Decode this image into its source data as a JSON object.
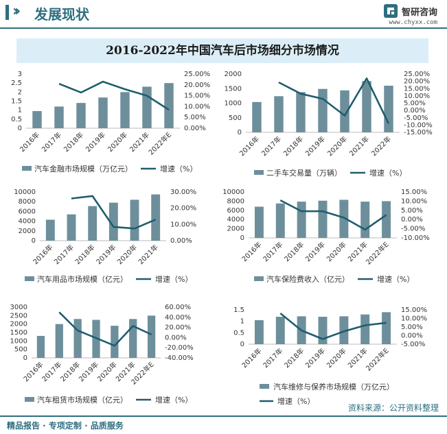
{
  "header": {
    "title": "发展现状",
    "brand_name": "智研咨询",
    "brand_url": "www.chyxx.com"
  },
  "main_title": "2016-2022年中国汽车后市场细分市场情况",
  "footer": {
    "left": "精品报告 · 专项定制 · 品质服务",
    "source": "资料来源：公开资料整理"
  },
  "colors": {
    "bar": "#6d8f9b",
    "line": "#1f5d6e",
    "brand": "#2e6e7f"
  },
  "chart_data": [
    {
      "type": "bar+line",
      "categories": [
        "2016年",
        "2017年",
        "2018年",
        "2019年",
        "2020年",
        "2021年",
        "2022年E"
      ],
      "bar_series": {
        "name": "汽车金融市场规模（万亿元）",
        "values": [
          0.95,
          1.2,
          1.4,
          1.7,
          2.0,
          2.3,
          2.5
        ]
      },
      "line_series": {
        "name": "增速（%）",
        "values": [
          null,
          20.5,
          16.5,
          21.5,
          18.0,
          15.0,
          8.5
        ]
      },
      "left_axis": {
        "ticks": [
          "0",
          "0.5",
          "1",
          "1.5",
          "2",
          "2.5",
          "3"
        ],
        "range": [
          0,
          3
        ]
      },
      "right_axis": {
        "ticks": [
          "0.00%",
          "5.00%",
          "10.00%",
          "15.00%",
          "20.00%",
          "25.00%"
        ],
        "range": [
          0,
          25
        ]
      }
    },
    {
      "type": "bar+line",
      "categories": [
        "2016年",
        "2017年",
        "2018年",
        "2019年",
        "2020年",
        "2021年",
        "2022年"
      ],
      "bar_series": {
        "name": "二手车交易量（万辆）",
        "values": [
          1040,
          1240,
          1380,
          1490,
          1440,
          1760,
          1600
        ]
      },
      "line_series": {
        "name": "增速（%）",
        "values": [
          null,
          19.3,
          11.5,
          8.0,
          -3.5,
          22.0,
          -9.0
        ]
      },
      "left_axis": {
        "ticks": [
          "0",
          "500",
          "1000",
          "1500",
          "2000"
        ],
        "range": [
          0,
          2000
        ]
      },
      "right_axis": {
        "ticks": [
          "-15.00%",
          "-10.00%",
          "-5.00%",
          "0.00%",
          "5.00%",
          "10.00%",
          "15.00%",
          "20.00%",
          "25.00%"
        ],
        "range": [
          -15,
          25
        ]
      }
    },
    {
      "type": "bar+line",
      "categories": [
        "2016年",
        "2017年",
        "2018年",
        "2019年",
        "2020年",
        "2021年"
      ],
      "bar_series": {
        "name": "汽车用品市场规模（亿元）",
        "values": [
          4300,
          5400,
          7100,
          7800,
          8400,
          9500
        ]
      },
      "line_series": {
        "name": "增速（%）",
        "values": [
          null,
          26.0,
          27.5,
          8.5,
          7.5,
          13.0
        ]
      },
      "left_axis": {
        "ticks": [
          "0",
          "2000",
          "4000",
          "6000",
          "8000",
          "10000"
        ],
        "range": [
          0,
          10000
        ]
      },
      "right_axis": {
        "ticks": [
          "0.00%",
          "10.00%",
          "20.00%",
          "30.00%"
        ],
        "range": [
          0,
          30
        ]
      }
    },
    {
      "type": "bar+line",
      "categories": [
        "2016年",
        "2017年",
        "2018年",
        "2019年",
        "2020年",
        "2021年",
        "2022年E"
      ],
      "bar_series": {
        "name": "汽车保险费收入（亿元）",
        "values": [
          6800,
          7500,
          7900,
          8100,
          8300,
          7900,
          8000
        ]
      },
      "line_series": {
        "name": "增速（%）",
        "values": [
          null,
          10.5,
          4.5,
          4.5,
          1.0,
          -5.5,
          2.5
        ]
      },
      "left_axis": {
        "ticks": [
          "0",
          "2000",
          "4000",
          "6000",
          "8000",
          "10000"
        ],
        "range": [
          0,
          10000
        ]
      },
      "right_axis": {
        "ticks": [
          "-10.00%",
          "-5.00%",
          "0.00%",
          "5.00%",
          "10.00%",
          "15.00%"
        ],
        "range": [
          -10,
          15
        ]
      }
    },
    {
      "type": "bar+line",
      "categories": [
        "2016年",
        "2017年",
        "2018年",
        "2019年",
        "2020年",
        "2021年",
        "2022年E"
      ],
      "bar_series": {
        "name": "汽车租赁市场规模（亿元）",
        "values": [
          1300,
          2000,
          2300,
          2250,
          1900,
          2300,
          2500
        ]
      },
      "line_series": {
        "name": "增速（%）",
        "values": [
          null,
          50.0,
          14.0,
          -1.0,
          -16.0,
          23.0,
          6.0
        ]
      },
      "left_axis": {
        "ticks": [
          "0",
          "500",
          "1000",
          "1500",
          "2000",
          "2500",
          "3000"
        ],
        "range": [
          0,
          3000
        ]
      },
      "right_axis": {
        "ticks": [
          "-40.00%",
          "-20.00%",
          "0.00%",
          "20.00%",
          "40.00%",
          "60.00%"
        ],
        "range": [
          -40,
          60
        ]
      }
    },
    {
      "type": "bar+line",
      "categories": [
        "2016年",
        "2017年",
        "2018年",
        "2019年",
        "2020年",
        "2021年",
        "2022年E"
      ],
      "bar_series": {
        "name": "汽车维修与保养市场规模（万亿元）",
        "values": [
          1.05,
          1.2,
          1.22,
          1.2,
          1.22,
          1.3,
          1.4
        ]
      },
      "line_series": {
        "name": "增速（%）",
        "values": [
          null,
          13.0,
          3.0,
          -2.0,
          2.5,
          6.0,
          7.5
        ]
      },
      "left_axis": {
        "ticks": [
          "0",
          "0.5",
          "1",
          "1.5"
        ],
        "range": [
          0,
          1.5
        ]
      },
      "right_axis": {
        "ticks": [
          "-5.00%",
          "0.00%",
          "5.00%",
          "10.00%",
          "15.00%"
        ],
        "range": [
          -5,
          15
        ]
      }
    }
  ]
}
